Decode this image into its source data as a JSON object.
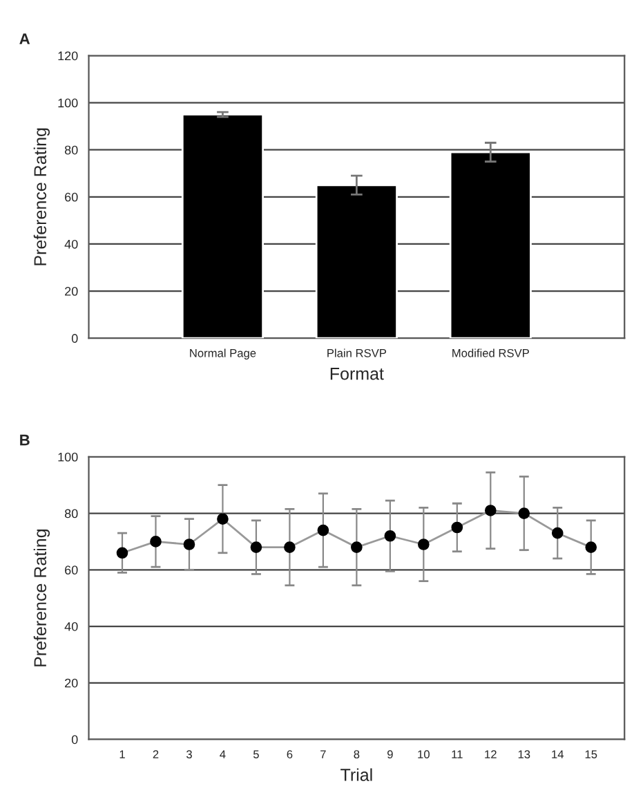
{
  "chart_data": [
    {
      "type": "bar",
      "title": "A",
      "xlabel": "Format",
      "ylabel": "Preference Rating",
      "categories": [
        "Normal Page",
        "Plain RSVP",
        "Modified RSVP"
      ],
      "values": [
        95,
        65,
        79
      ],
      "errors": [
        1,
        4,
        4
      ],
      "color": "#000000",
      "ylim": [
        0,
        120
      ],
      "yticks": [
        0,
        20,
        40,
        60,
        80,
        100,
        120
      ],
      "grid": "y"
    },
    {
      "type": "line",
      "title": "B",
      "xlabel": "Trial",
      "ylabel": "Preference Rating",
      "categories": [
        "1",
        "2",
        "3",
        "4",
        "5",
        "6",
        "7",
        "8",
        "9",
        "10",
        "11",
        "12",
        "13",
        "14",
        "15"
      ],
      "values": [
        66,
        70,
        69,
        78,
        68,
        68,
        74,
        68,
        72,
        69,
        75,
        81,
        80,
        73,
        68
      ],
      "errors": [
        7,
        9,
        9,
        12,
        9.5,
        13.5,
        13,
        13.5,
        12.5,
        13,
        8.5,
        13.5,
        13,
        9,
        9.5
      ],
      "color": "#000000",
      "marker": "circle",
      "line_style": "solid",
      "ylim": [
        0,
        100
      ],
      "yticks": [
        0,
        20,
        40,
        60,
        80,
        100
      ],
      "grid": "y"
    }
  ]
}
